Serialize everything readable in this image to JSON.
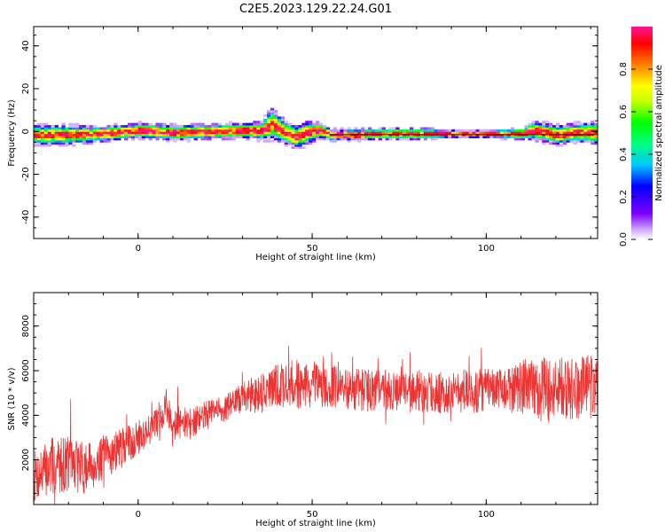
{
  "title": "C2E5.2023.129.22.24.G01",
  "chart_data": [
    {
      "type": "heatmap",
      "xlabel": "Height of straight line (km)",
      "ylabel": "Frequency (Hz)",
      "xlim": [
        -30,
        132
      ],
      "ylim": [
        -50,
        49
      ],
      "xticks": [
        0,
        50,
        100
      ],
      "yticks": [
        -40,
        -20,
        0,
        20,
        40
      ],
      "xtick_labels": [
        "0",
        "50",
        "100"
      ],
      "ytick_labels": [
        "-40",
        "-20",
        "0",
        "20",
        "40"
      ],
      "colorbar": {
        "label": "Normalized spectral amplitude",
        "range": [
          0,
          1
        ],
        "ticks": [
          0.0,
          0.2,
          0.4,
          0.6,
          0.8
        ],
        "tick_labels": [
          "0.0",
          "0.2",
          "0.4",
          "0.6",
          "0.8"
        ],
        "colormap": [
          "#ffffff",
          "#c8a0ff",
          "#7f00ff",
          "#0000ff",
          "#00c8ff",
          "#00ff7f",
          "#00ff00",
          "#c8ff00",
          "#ffff00",
          "#ff8000",
          "#ff0000",
          "#ff1493"
        ]
      },
      "ridge": {
        "description_x": [
          -30,
          -20,
          -10,
          0,
          10,
          20,
          30,
          35,
          38,
          42,
          45,
          48,
          52,
          55,
          60,
          70,
          80,
          90,
          100,
          110,
          113,
          117,
          120,
          125,
          132
        ],
        "center_hz": [
          -2,
          -2,
          -1.5,
          0,
          -1,
          -0.5,
          0,
          0,
          3,
          -1,
          -3,
          -1,
          0,
          -2,
          -2,
          -1.5,
          -1.5,
          -1.5,
          -1.5,
          -1.5,
          0,
          -1,
          -2,
          -1,
          -1
        ],
        "spread_hz": [
          5,
          5,
          4,
          4,
          4,
          4,
          4,
          5,
          8,
          6,
          6,
          6,
          4,
          3,
          3,
          3,
          3,
          2,
          2,
          3,
          5,
          5,
          5,
          5,
          6
        ]
      },
      "grid": false,
      "legend": "none"
    },
    {
      "type": "line",
      "xlabel": "Height of straight line (km)",
      "ylabel": "SNR (10 * v/v)",
      "xlim": [
        -30,
        132
      ],
      "ylim": [
        0,
        9500
      ],
      "xticks": [
        0,
        50,
        100
      ],
      "yticks": [
        2000,
        4000,
        6000,
        8000
      ],
      "xtick_labels": [
        "0",
        "50",
        "100"
      ],
      "ytick_labels": [
        "2000",
        "4000",
        "6000",
        "8000"
      ],
      "color": "#ee3333",
      "series": [
        {
          "x": [
            -30,
            -25,
            -20,
            -15,
            -10,
            -5,
            0,
            5,
            8,
            10,
            15,
            20,
            25,
            30,
            35,
            40,
            45,
            50,
            55,
            60,
            65,
            70,
            75,
            80,
            85,
            90,
            95,
            100,
            105,
            110,
            115,
            120,
            125,
            132
          ],
          "values": [
            1200,
            1700,
            1900,
            1600,
            2100,
            2500,
            3000,
            3600,
            4400,
            3700,
            3600,
            4100,
            4300,
            4800,
            5000,
            5300,
            5400,
            5300,
            5300,
            5200,
            5100,
            5200,
            5000,
            5100,
            5000,
            5000,
            5100,
            5100,
            5100,
            5300,
            5200,
            5100,
            5200,
            5300
          ],
          "noise": [
            1200,
            1300,
            1300,
            1200,
            1000,
            900,
            800,
            700,
            800,
            800,
            700,
            600,
            600,
            700,
            900,
            1100,
            1100,
            1000,
            1000,
            950,
            950,
            950,
            900,
            950,
            950,
            950,
            1000,
            1000,
            1000,
            1200,
            1500,
            1500,
            1400,
            1500
          ]
        }
      ],
      "grid": false,
      "legend": "none"
    }
  ]
}
